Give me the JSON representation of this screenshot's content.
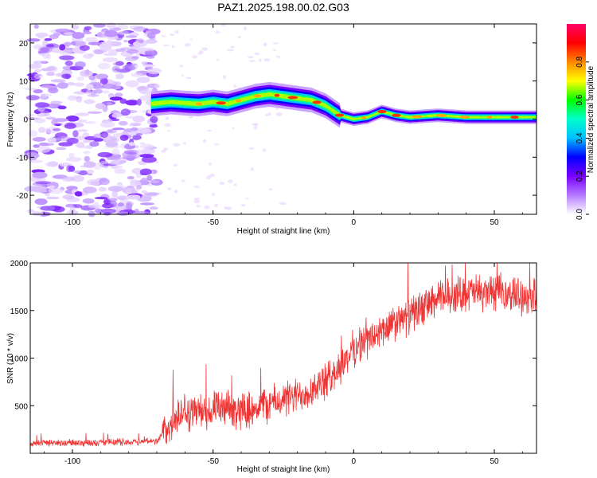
{
  "title": "PAZ1.2025.198.00.02.G03",
  "chart_data": [
    {
      "type": "heatmap",
      "xlabel": "Height of straight line (km)",
      "ylabel": "Frequency (Hz)",
      "xlim": [
        -115,
        65
      ],
      "ylim": [
        -25,
        25
      ],
      "xticks": [
        -100,
        -50,
        0,
        50
      ],
      "yticks": [
        -20,
        -10,
        0,
        10,
        20
      ],
      "colorbar": {
        "label": "Normalized spectral amplitude",
        "range": [
          0,
          1
        ],
        "ticks": [
          "0.0",
          "0.2",
          "0.4",
          "0.6",
          "0.8"
        ],
        "colors": [
          "#ffffff",
          "#b57bff",
          "#7a00ff",
          "#0000ff",
          "#00bfff",
          "#00ffcc",
          "#00ff00",
          "#ffff00",
          "#ff8800",
          "#ff0000",
          "#ff0066"
        ]
      },
      "noise_region_x": [
        -115,
        -70
      ],
      "signal_ridge": {
        "x": [
          -72,
          -65,
          -60,
          -55,
          -50,
          -45,
          -40,
          -35,
          -30,
          -25,
          -20,
          -15,
          -10,
          -5,
          0,
          5,
          10,
          15,
          20,
          30,
          40,
          50,
          65
        ],
        "frequency": [
          4,
          4.5,
          4.2,
          4,
          4.5,
          4,
          5,
          6,
          6.5,
          6,
          5.5,
          5,
          3.5,
          1,
          0,
          0.5,
          2,
          1,
          0.5,
          1,
          0.5,
          0.5,
          0.5
        ]
      }
    },
    {
      "type": "line",
      "xlabel": "Height of straight line (km)",
      "ylabel": "SNR (10 * v/v)",
      "xlim": [
        -115,
        65
      ],
      "ylim": [
        0,
        2000
      ],
      "xticks": [
        -100,
        -50,
        0,
        50
      ],
      "yticks": [
        500,
        1000,
        1500,
        2000
      ],
      "color": "#ee3333",
      "trend": {
        "x": [
          -115,
          -100,
          -80,
          -70,
          -65,
          -60,
          -50,
          -40,
          -30,
          -20,
          -10,
          -5,
          0,
          10,
          20,
          30,
          40,
          50,
          60,
          65
        ],
        "y": [
          110,
          110,
          120,
          130,
          310,
          430,
          450,
          450,
          520,
          600,
          750,
          900,
          1100,
          1280,
          1450,
          1620,
          1690,
          1690,
          1660,
          1660
        ]
      },
      "noise_amplitude": [
        45,
        230
      ]
    }
  ]
}
